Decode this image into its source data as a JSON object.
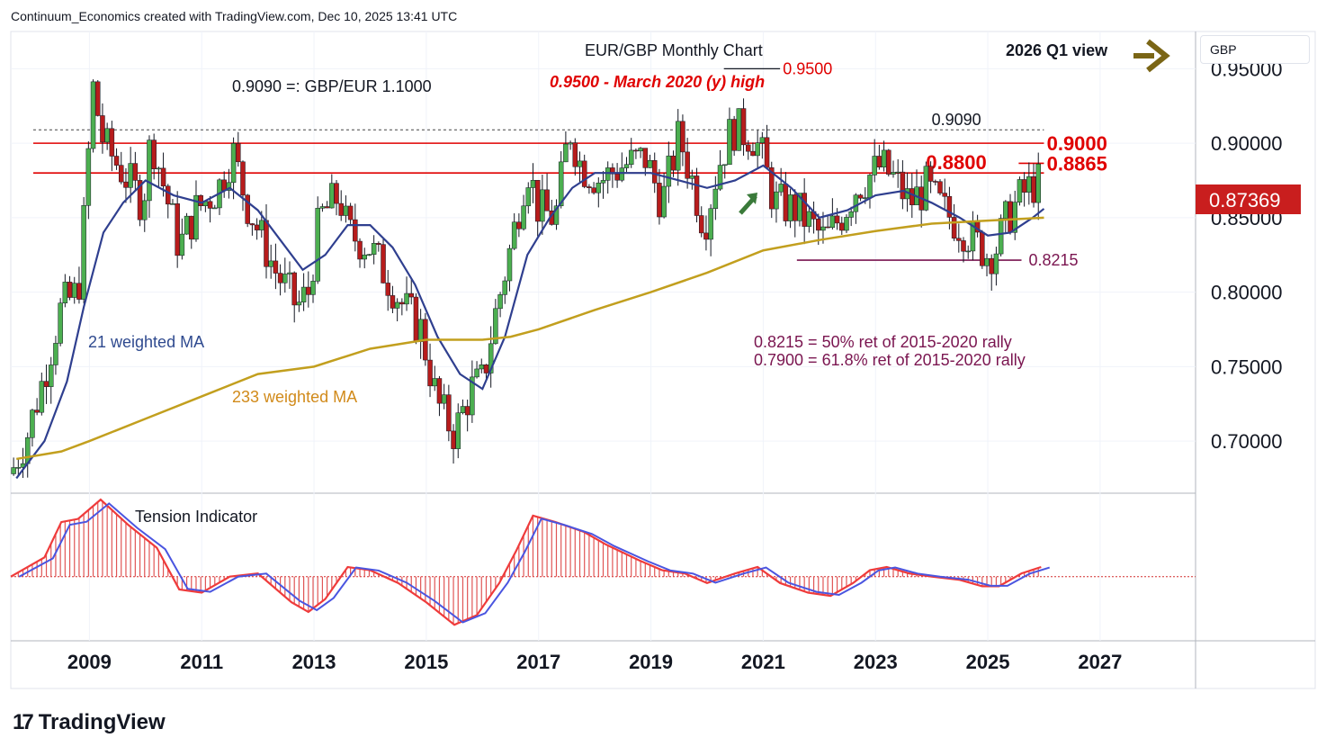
{
  "header": {
    "credit": "Continuum_Economics created with TradingView.com, Dec 10, 2025 13:41 UTC"
  },
  "brand": {
    "logo_mark": "17",
    "logo_text": "TradingView"
  },
  "price_axis": {
    "currency": "GBP"
  },
  "chart_data": [
    {
      "type": "candlestick",
      "title": "EUR/GBP Monthly Chart",
      "view_label": "2026 Q1 view",
      "x_ticks": [
        "2009",
        "2011",
        "2013",
        "2015",
        "2017",
        "2019",
        "2021",
        "2023",
        "2025",
        "2027"
      ],
      "x_range": [
        2007.6,
        2028.7
      ],
      "y_ticks": [
        "0.95000",
        "0.90000",
        "0.85000",
        "0.80000",
        "0.75000",
        "0.70000"
      ],
      "y_range": [
        0.665,
        0.975
      ],
      "last_price": "0.87369",
      "colors": {
        "up": "#4caf50",
        "down": "#b71c1c",
        "ma21": "#2f3f8f",
        "ma233": "#c29f1e",
        "level": "#e00000",
        "support": "#7a1550",
        "arrow": "#7a6515"
      },
      "annotations": {
        "conversion": "0.9090 =: GBP/EUR 1.1000",
        "march_high": "0.9500 - March 2020 (y) high",
        "ret_50": "0.8215 = 50% ret of 2015-2020 rally",
        "ret_618": "0.7900 = 61.8% ret of 2015-2020 rally"
      },
      "levels": [
        {
          "label": "0.9500",
          "value": 0.95,
          "style": "short",
          "from": 2020.3,
          "to": 2021.3
        },
        {
          "label": "0.9090",
          "value": 0.909,
          "style": "dashed",
          "from": 2008.0,
          "to": 2026.0
        },
        {
          "label": "0.9000",
          "value": 0.9,
          "style": "solid",
          "from": 2008.0,
          "to": 2026.0
        },
        {
          "label": "0.8865",
          "value": 0.8865,
          "style": "short",
          "from": 2025.55,
          "to": 2026.0
        },
        {
          "label": "0.8800",
          "value": 0.88,
          "style": "solid",
          "from": 2008.0,
          "to": 2026.0
        },
        {
          "label": "0.8215",
          "value": 0.8215,
          "style": "support",
          "from": 2021.6,
          "to": 2025.6
        }
      ],
      "ma_labels": {
        "ma21": "21 weighted MA",
        "ma233": "233 weighted MA"
      },
      "close_path": [
        [
          2007.6,
          0.678
        ],
        [
          2007.9,
          0.705
        ],
        [
          2008.2,
          0.745
        ],
        [
          2008.5,
          0.79
        ],
        [
          2008.8,
          0.8
        ],
        [
          2008.95,
          0.87
        ],
        [
          2009.05,
          0.94
        ],
        [
          2009.25,
          0.9
        ],
        [
          2009.6,
          0.88
        ],
        [
          2009.95,
          0.86
        ],
        [
          2010.1,
          0.905
        ],
        [
          2010.4,
          0.86
        ],
        [
          2010.6,
          0.83
        ],
        [
          2010.9,
          0.855
        ],
        [
          2011.3,
          0.87
        ],
        [
          2011.55,
          0.895
        ],
        [
          2011.8,
          0.86
        ],
        [
          2012.3,
          0.815
        ],
        [
          2012.7,
          0.79
        ],
        [
          2012.9,
          0.8
        ],
        [
          2013.1,
          0.85
        ],
        [
          2013.45,
          0.865
        ],
        [
          2013.6,
          0.84
        ],
        [
          2014.0,
          0.83
        ],
        [
          2014.3,
          0.81
        ],
        [
          2014.6,
          0.79
        ],
        [
          2014.9,
          0.775
        ],
        [
          2015.2,
          0.725
        ],
        [
          2015.5,
          0.705
        ],
        [
          2015.8,
          0.735
        ],
        [
          2016.0,
          0.74
        ],
        [
          2016.2,
          0.78
        ],
        [
          2016.5,
          0.83
        ],
        [
          2016.8,
          0.885
        ],
        [
          2017.0,
          0.855
        ],
        [
          2017.3,
          0.85
        ],
        [
          2017.55,
          0.91
        ],
        [
          2017.75,
          0.885
        ],
        [
          2018.1,
          0.875
        ],
        [
          2018.5,
          0.885
        ],
        [
          2018.9,
          0.89
        ],
        [
          2019.2,
          0.86
        ],
        [
          2019.5,
          0.905
        ],
        [
          2019.7,
          0.88
        ],
        [
          2019.95,
          0.845
        ],
        [
          2020.2,
          0.885
        ],
        [
          2020.45,
          0.91
        ],
        [
          2020.8,
          0.905
        ],
        [
          2020.95,
          0.895
        ],
        [
          2021.2,
          0.86
        ],
        [
          2021.6,
          0.855
        ],
        [
          2021.85,
          0.845
        ],
        [
          2022.1,
          0.835
        ],
        [
          2022.4,
          0.852
        ],
        [
          2022.65,
          0.87
        ],
        [
          2022.8,
          0.875
        ],
        [
          2023.1,
          0.885
        ],
        [
          2023.35,
          0.875
        ],
        [
          2023.6,
          0.86
        ],
        [
          2023.9,
          0.87
        ],
        [
          2024.2,
          0.855
        ],
        [
          2024.5,
          0.845
        ],
        [
          2024.75,
          0.835
        ],
        [
          2025.0,
          0.825
        ],
        [
          2025.15,
          0.83
        ],
        [
          2025.35,
          0.85
        ],
        [
          2025.6,
          0.865
        ],
        [
          2025.8,
          0.872
        ],
        [
          2025.95,
          0.8737
        ]
      ],
      "ma21_path": [
        [
          2007.7,
          0.675
        ],
        [
          2008.2,
          0.7
        ],
        [
          2008.6,
          0.74
        ],
        [
          2008.9,
          0.79
        ],
        [
          2009.25,
          0.84
        ],
        [
          2009.6,
          0.86
        ],
        [
          2010.0,
          0.875
        ],
        [
          2010.5,
          0.865
        ],
        [
          2011.0,
          0.86
        ],
        [
          2011.5,
          0.87
        ],
        [
          2012.0,
          0.855
        ],
        [
          2012.4,
          0.835
        ],
        [
          2012.8,
          0.815
        ],
        [
          2013.2,
          0.825
        ],
        [
          2013.6,
          0.845
        ],
        [
          2014.0,
          0.845
        ],
        [
          2014.4,
          0.83
        ],
        [
          2014.8,
          0.805
        ],
        [
          2015.2,
          0.77
        ],
        [
          2015.6,
          0.745
        ],
        [
          2016.0,
          0.735
        ],
        [
          2016.4,
          0.77
        ],
        [
          2016.8,
          0.825
        ],
        [
          2017.2,
          0.85
        ],
        [
          2017.6,
          0.87
        ],
        [
          2018.0,
          0.88
        ],
        [
          2018.5,
          0.88
        ],
        [
          2019.0,
          0.88
        ],
        [
          2019.5,
          0.875
        ],
        [
          2020.0,
          0.87
        ],
        [
          2020.5,
          0.875
        ],
        [
          2021.0,
          0.885
        ],
        [
          2021.5,
          0.87
        ],
        [
          2022.0,
          0.85
        ],
        [
          2022.5,
          0.855
        ],
        [
          2023.0,
          0.865
        ],
        [
          2023.5,
          0.868
        ],
        [
          2024.0,
          0.86
        ],
        [
          2024.5,
          0.85
        ],
        [
          2025.0,
          0.838
        ],
        [
          2025.4,
          0.84
        ],
        [
          2025.8,
          0.85
        ],
        [
          2026.0,
          0.856
        ]
      ],
      "ma233_path": [
        [
          2007.7,
          0.688
        ],
        [
          2008.5,
          0.693
        ],
        [
          2009.0,
          0.7
        ],
        [
          2010.0,
          0.715
        ],
        [
          2011.0,
          0.73
        ],
        [
          2012.0,
          0.745
        ],
        [
          2013.0,
          0.75
        ],
        [
          2014.0,
          0.762
        ],
        [
          2015.0,
          0.768
        ],
        [
          2016.0,
          0.768
        ],
        [
          2016.5,
          0.77
        ],
        [
          2017.0,
          0.775
        ],
        [
          2018.0,
          0.788
        ],
        [
          2019.0,
          0.8
        ],
        [
          2020.0,
          0.813
        ],
        [
          2021.0,
          0.828
        ],
        [
          2022.0,
          0.835
        ],
        [
          2023.0,
          0.841
        ],
        [
          2024.0,
          0.846
        ],
        [
          2025.0,
          0.848
        ],
        [
          2026.0,
          0.85
        ]
      ]
    },
    {
      "type": "area",
      "title": "Tension Indicator",
      "y_range": [
        -1.0,
        1.3
      ],
      "path": [
        [
          2007.6,
          0.0
        ],
        [
          2008.2,
          0.3
        ],
        [
          2008.5,
          0.85
        ],
        [
          2008.8,
          0.9
        ],
        [
          2009.2,
          1.2
        ],
        [
          2009.7,
          0.8
        ],
        [
          2010.2,
          0.45
        ],
        [
          2010.6,
          -0.2
        ],
        [
          2011.0,
          -0.25
        ],
        [
          2011.5,
          0.0
        ],
        [
          2012.0,
          0.05
        ],
        [
          2012.6,
          -0.4
        ],
        [
          2012.9,
          -0.55
        ],
        [
          2013.2,
          -0.35
        ],
        [
          2013.6,
          0.15
        ],
        [
          2014.0,
          0.1
        ],
        [
          2014.5,
          -0.1
        ],
        [
          2015.0,
          -0.4
        ],
        [
          2015.5,
          -0.75
        ],
        [
          2015.9,
          -0.6
        ],
        [
          2016.3,
          -0.1
        ],
        [
          2016.6,
          0.4
        ],
        [
          2016.9,
          0.95
        ],
        [
          2017.3,
          0.85
        ],
        [
          2017.8,
          0.7
        ],
        [
          2018.2,
          0.5
        ],
        [
          2018.8,
          0.25
        ],
        [
          2019.2,
          0.1
        ],
        [
          2019.6,
          0.05
        ],
        [
          2020.0,
          -0.1
        ],
        [
          2020.5,
          0.05
        ],
        [
          2020.9,
          0.15
        ],
        [
          2021.3,
          -0.1
        ],
        [
          2021.8,
          -0.25
        ],
        [
          2022.2,
          -0.3
        ],
        [
          2022.6,
          -0.1
        ],
        [
          2022.9,
          0.1
        ],
        [
          2023.2,
          0.15
        ],
        [
          2023.6,
          0.05
        ],
        [
          2024.0,
          0.0
        ],
        [
          2024.5,
          -0.05
        ],
        [
          2024.9,
          -0.15
        ],
        [
          2025.2,
          -0.15
        ],
        [
          2025.6,
          0.05
        ],
        [
          2025.95,
          0.15
        ]
      ]
    }
  ]
}
